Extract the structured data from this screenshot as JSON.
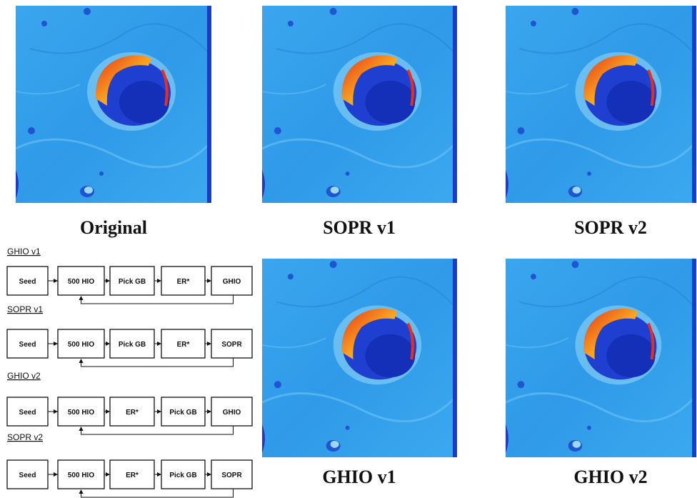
{
  "figures": [
    {
      "caption": "Original"
    },
    {
      "caption": "SOPR v1"
    },
    {
      "caption": "SOPR v2"
    },
    {
      "caption": "GHIO v1"
    },
    {
      "caption": "GHIO v2"
    }
  ],
  "pipelines": [
    {
      "title": "GHIO v1",
      "steps": [
        "Seed",
        "500 HIO",
        "Pick GB",
        "ER*",
        "GHIO"
      ]
    },
    {
      "title": "SOPR v1",
      "steps": [
        "Seed",
        "500 HIO",
        "Pick GB",
        "ER*",
        "SOPR"
      ]
    },
    {
      "title": "GHIO v2",
      "steps": [
        "Seed",
        "500 HIO",
        "ER*",
        "Pick GB",
        "GHIO"
      ]
    },
    {
      "title": "SOPR v2",
      "steps": [
        "Seed",
        "500 HIO",
        "ER*",
        "Pick GB",
        "SOPR"
      ]
    }
  ]
}
